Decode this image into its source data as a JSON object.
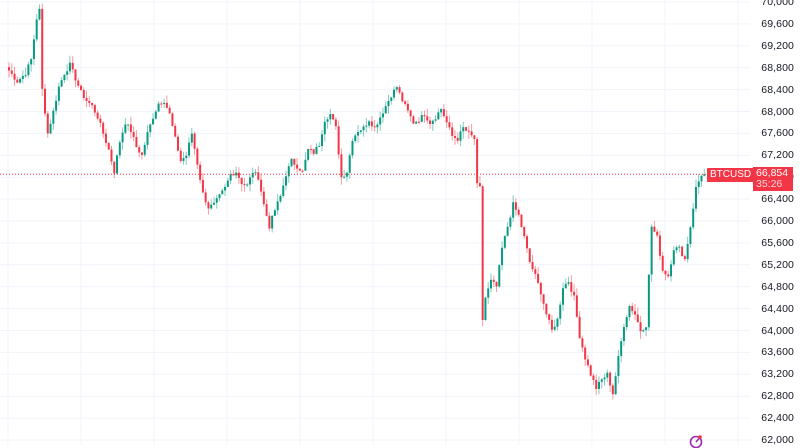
{
  "chart_data": {
    "type": "candlestick",
    "title": "",
    "symbol": "BTCUSD",
    "last_price": "66,854",
    "countdown": "35:26",
    "xlabel": "",
    "ylabel": "",
    "ylim": [
      62000,
      70000
    ],
    "y_ticks": [
      "70,000",
      "69,600",
      "69,200",
      "68,800",
      "68,400",
      "68,000",
      "67,600",
      "67,200",
      "66,800",
      "66,400",
      "66,000",
      "65,600",
      "65,200",
      "64,800",
      "64,400",
      "64,000",
      "63,600",
      "63,200",
      "62,800",
      "62,400",
      "62,000"
    ],
    "grid": true,
    "colors": {
      "up": "#089981",
      "down": "#f23645",
      "grid": "#f0f3fa",
      "last_price_line": "#f23645"
    },
    "anchor_path": [
      [
        0,
        68750
      ],
      [
        3,
        68550
      ],
      [
        6,
        68700
      ],
      [
        8,
        68950
      ],
      [
        10,
        69700
      ],
      [
        11,
        69850
      ],
      [
        12,
        68400
      ],
      [
        14,
        67600
      ],
      [
        16,
        68000
      ],
      [
        18,
        68450
      ],
      [
        20,
        68700
      ],
      [
        22,
        68850
      ],
      [
        24,
        68600
      ],
      [
        26,
        68350
      ],
      [
        28,
        68200
      ],
      [
        30,
        68100
      ],
      [
        32,
        67900
      ],
      [
        34,
        67600
      ],
      [
        36,
        67300
      ],
      [
        38,
        66900
      ],
      [
        40,
        67450
      ],
      [
        42,
        67800
      ],
      [
        44,
        67650
      ],
      [
        46,
        67350
      ],
      [
        48,
        67200
      ],
      [
        50,
        67600
      ],
      [
        52,
        67900
      ],
      [
        54,
        68150
      ],
      [
        56,
        68200
      ],
      [
        58,
        67950
      ],
      [
        60,
        67500
      ],
      [
        62,
        67100
      ],
      [
        64,
        67200
      ],
      [
        66,
        67600
      ],
      [
        68,
        67050
      ],
      [
        70,
        66500
      ],
      [
        72,
        66250
      ],
      [
        74,
        66300
      ],
      [
        76,
        66450
      ],
      [
        78,
        66600
      ],
      [
        80,
        66850
      ],
      [
        82,
        66900
      ],
      [
        84,
        66700
      ],
      [
        86,
        66650
      ],
      [
        88,
        66900
      ],
      [
        90,
        66800
      ],
      [
        92,
        66300
      ],
      [
        94,
        65900
      ],
      [
        96,
        66200
      ],
      [
        98,
        66450
      ],
      [
        100,
        66850
      ],
      [
        102,
        67100
      ],
      [
        104,
        67000
      ],
      [
        106,
        66900
      ],
      [
        108,
        67300
      ],
      [
        110,
        67250
      ],
      [
        112,
        67400
      ],
      [
        114,
        67850
      ],
      [
        116,
        67950
      ],
      [
        118,
        67700
      ],
      [
        120,
        66800
      ],
      [
        122,
        66900
      ],
      [
        124,
        67500
      ],
      [
        126,
        67650
      ],
      [
        128,
        67700
      ],
      [
        130,
        67850
      ],
      [
        132,
        67700
      ],
      [
        134,
        67900
      ],
      [
        136,
        68100
      ],
      [
        138,
        68300
      ],
      [
        140,
        68450
      ],
      [
        142,
        68200
      ],
      [
        144,
        68000
      ],
      [
        146,
        67800
      ],
      [
        148,
        67850
      ],
      [
        150,
        67950
      ],
      [
        152,
        67800
      ],
      [
        154,
        67900
      ],
      [
        156,
        68050
      ],
      [
        158,
        67800
      ],
      [
        160,
        67550
      ],
      [
        162,
        67500
      ],
      [
        164,
        67700
      ],
      [
        166,
        67600
      ],
      [
        168,
        67500
      ],
      [
        169,
        66650
      ],
      [
        170,
        66600
      ],
      [
        171,
        64200
      ],
      [
        172,
        64600
      ],
      [
        174,
        64900
      ],
      [
        176,
        64800
      ],
      [
        178,
        65500
      ],
      [
        180,
        65900
      ],
      [
        182,
        66300
      ],
      [
        184,
        66100
      ],
      [
        186,
        65700
      ],
      [
        188,
        65250
      ],
      [
        190,
        65000
      ],
      [
        192,
        64700
      ],
      [
        194,
        64300
      ],
      [
        196,
        64000
      ],
      [
        198,
        64200
      ],
      [
        200,
        64800
      ],
      [
        202,
        64900
      ],
      [
        204,
        64600
      ],
      [
        206,
        63900
      ],
      [
        208,
        63500
      ],
      [
        210,
        63200
      ],
      [
        212,
        62950
      ],
      [
        214,
        63100
      ],
      [
        216,
        63200
      ],
      [
        218,
        62850
      ],
      [
        220,
        63500
      ],
      [
        222,
        64100
      ],
      [
        224,
        64450
      ],
      [
        226,
        64300
      ],
      [
        228,
        64000
      ],
      [
        230,
        64100
      ],
      [
        232,
        65900
      ],
      [
        234,
        65700
      ],
      [
        236,
        65100
      ],
      [
        238,
        65000
      ],
      [
        240,
        65500
      ],
      [
        242,
        65500
      ],
      [
        244,
        65300
      ],
      [
        246,
        65900
      ],
      [
        248,
        66600
      ],
      [
        250,
        66850
      ],
      [
        251,
        66854
      ]
    ]
  },
  "axis": {
    "labels": [
      "70,000",
      "69,600",
      "69,200",
      "68,800",
      "68,400",
      "68,000",
      "67,600",
      "67,200",
      "66,800",
      "66,400",
      "66,000",
      "65,600",
      "65,200",
      "64,800",
      "64,400",
      "64,000",
      "63,600",
      "63,200",
      "62,800",
      "62,400",
      "62,000"
    ]
  },
  "price_tag": {
    "symbol": "BTCUSD",
    "price": "66,854",
    "countdown": "35:26"
  }
}
